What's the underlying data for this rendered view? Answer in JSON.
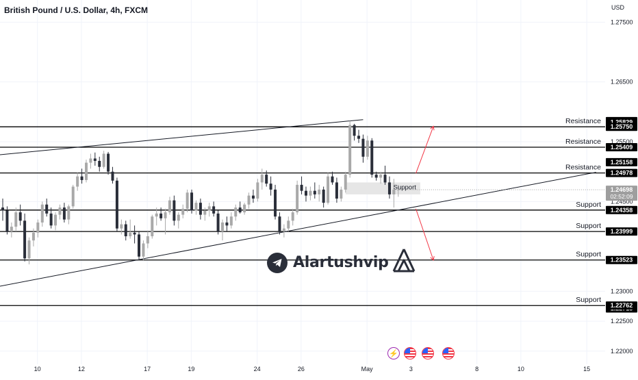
{
  "header": {
    "title": "British Pound / U.S. Dollar, 4h, FXCM",
    "currency": "USD"
  },
  "brand": {
    "name": "Alartushvip"
  },
  "colors": {
    "bull_candle": "#a9a9a9",
    "bear_candle": "#2a2e39",
    "level_line": "#000000",
    "projection_arrow": "#f23645",
    "support_box": "#e6e6e6",
    "price_label_bg": "#000000",
    "current_price_bg": "#9e9e9e"
  },
  "chart_data": {
    "type": "candlestick",
    "title": "British Pound / U.S. Dollar, 4h, FXCM",
    "y_axis": {
      "range": [
        1.2178,
        1.2787
      ],
      "ticks": [
        1.22,
        1.225,
        1.23,
        1.235,
        1.24,
        1.245,
        1.255,
        1.265,
        1.275
      ],
      "tick_labels": [
        "1.22000",
        "1.22500",
        "1.23000",
        "1.23500",
        "1.24000",
        "1.24500",
        "1.25500",
        "1.26500",
        "1.27500"
      ]
    },
    "x_axis": {
      "ticks": [
        {
          "bar": 4,
          "label": "10"
        },
        {
          "bar": 14,
          "label": "12"
        },
        {
          "bar": 29,
          "label": "17"
        },
        {
          "bar": 39,
          "label": "19"
        },
        {
          "bar": 54,
          "label": "24"
        },
        {
          "bar": 64,
          "label": "26"
        },
        {
          "bar": 79,
          "label": "May"
        },
        {
          "bar": 89,
          "label": "3"
        },
        {
          "bar": 104,
          "label": "8"
        },
        {
          "bar": 114,
          "label": "10"
        },
        {
          "bar": 129,
          "label": "15"
        }
      ]
    },
    "candles": [
      {
        "o": 1.244,
        "h": 1.2455,
        "l": 1.2418,
        "c": 1.2435
      },
      {
        "o": 1.2435,
        "h": 1.2442,
        "l": 1.2395,
        "c": 1.24
      },
      {
        "o": 1.24,
        "h": 1.2415,
        "l": 1.239,
        "c": 1.2408
      },
      {
        "o": 1.2408,
        "h": 1.244,
        "l": 1.24,
        "c": 1.2432
      },
      {
        "o": 1.2432,
        "h": 1.2445,
        "l": 1.241,
        "c": 1.2418
      },
      {
        "o": 1.2418,
        "h": 1.243,
        "l": 1.235,
        "c": 1.2355
      },
      {
        "o": 1.2355,
        "h": 1.239,
        "l": 1.2345,
        "c": 1.2385
      },
      {
        "o": 1.2385,
        "h": 1.2405,
        "l": 1.2375,
        "c": 1.2398
      },
      {
        "o": 1.2398,
        "h": 1.242,
        "l": 1.239,
        "c": 1.2415
      },
      {
        "o": 1.2415,
        "h": 1.245,
        "l": 1.2408,
        "c": 1.2445
      },
      {
        "o": 1.2445,
        "h": 1.2455,
        "l": 1.2425,
        "c": 1.243
      },
      {
        "o": 1.243,
        "h": 1.244,
        "l": 1.2405,
        "c": 1.241
      },
      {
        "o": 1.241,
        "h": 1.2432,
        "l": 1.2402,
        "c": 1.2428
      },
      {
        "o": 1.2428,
        "h": 1.2445,
        "l": 1.242,
        "c": 1.244
      },
      {
        "o": 1.244,
        "h": 1.2448,
        "l": 1.2415,
        "c": 1.242
      },
      {
        "o": 1.242,
        "h": 1.2445,
        "l": 1.2412,
        "c": 1.2442
      },
      {
        "o": 1.2442,
        "h": 1.2478,
        "l": 1.2438,
        "c": 1.2475
      },
      {
        "o": 1.2475,
        "h": 1.2498,
        "l": 1.2468,
        "c": 1.2492
      },
      {
        "o": 1.2492,
        "h": 1.2505,
        "l": 1.248,
        "c": 1.2486
      },
      {
        "o": 1.2486,
        "h": 1.252,
        "l": 1.2482,
        "c": 1.2515
      },
      {
        "o": 1.2515,
        "h": 1.253,
        "l": 1.2505,
        "c": 1.2522
      },
      {
        "o": 1.2522,
        "h": 1.2532,
        "l": 1.251,
        "c": 1.2518
      },
      {
        "o": 1.2518,
        "h": 1.2525,
        "l": 1.25,
        "c": 1.2508
      },
      {
        "o": 1.2508,
        "h": 1.2535,
        "l": 1.2505,
        "c": 1.253
      },
      {
        "o": 1.253,
        "h": 1.2533,
        "l": 1.2495,
        "c": 1.25
      },
      {
        "o": 1.25,
        "h": 1.2508,
        "l": 1.248,
        "c": 1.2485
      },
      {
        "o": 1.2485,
        "h": 1.249,
        "l": 1.24,
        "c": 1.2405
      },
      {
        "o": 1.2405,
        "h": 1.242,
        "l": 1.2395,
        "c": 1.2412
      },
      {
        "o": 1.2412,
        "h": 1.2418,
        "l": 1.2385,
        "c": 1.2392
      },
      {
        "o": 1.2392,
        "h": 1.242,
        "l": 1.2388,
        "c": 1.2398
      },
      {
        "o": 1.2398,
        "h": 1.241,
        "l": 1.238,
        "c": 1.2395
      },
      {
        "o": 1.2395,
        "h": 1.24,
        "l": 1.2352,
        "c": 1.2358
      },
      {
        "o": 1.2358,
        "h": 1.2385,
        "l": 1.2352,
        "c": 1.238
      },
      {
        "o": 1.238,
        "h": 1.24,
        "l": 1.2372,
        "c": 1.2392
      },
      {
        "o": 1.2392,
        "h": 1.2428,
        "l": 1.2388,
        "c": 1.2425
      },
      {
        "o": 1.2425,
        "h": 1.244,
        "l": 1.241,
        "c": 1.243
      },
      {
        "o": 1.243,
        "h": 1.244,
        "l": 1.2418,
        "c": 1.2422
      },
      {
        "o": 1.2422,
        "h": 1.2438,
        "l": 1.2395,
        "c": 1.2432
      },
      {
        "o": 1.2432,
        "h": 1.2458,
        "l": 1.2428,
        "c": 1.2452
      },
      {
        "o": 1.2452,
        "h": 1.246,
        "l": 1.241,
        "c": 1.2418
      },
      {
        "o": 1.2418,
        "h": 1.2432,
        "l": 1.2405,
        "c": 1.2428
      },
      {
        "o": 1.2428,
        "h": 1.2445,
        "l": 1.2422,
        "c": 1.2438
      },
      {
        "o": 1.2438,
        "h": 1.247,
        "l": 1.2432,
        "c": 1.2465
      },
      {
        "o": 1.2465,
        "h": 1.247,
        "l": 1.243,
        "c": 1.2435
      },
      {
        "o": 1.2435,
        "h": 1.2452,
        "l": 1.2428,
        "c": 1.2448
      },
      {
        "o": 1.2448,
        "h": 1.2455,
        "l": 1.242,
        "c": 1.2428
      },
      {
        "o": 1.2428,
        "h": 1.244,
        "l": 1.2418,
        "c": 1.2435
      },
      {
        "o": 1.2435,
        "h": 1.2448,
        "l": 1.2425,
        "c": 1.2442
      },
      {
        "o": 1.2442,
        "h": 1.245,
        "l": 1.2425,
        "c": 1.243
      },
      {
        "o": 1.243,
        "h": 1.2435,
        "l": 1.2395,
        "c": 1.24
      },
      {
        "o": 1.24,
        "h": 1.242,
        "l": 1.2385,
        "c": 1.2415
      },
      {
        "o": 1.2415,
        "h": 1.2425,
        "l": 1.24,
        "c": 1.241
      },
      {
        "o": 1.241,
        "h": 1.2432,
        "l": 1.2405,
        "c": 1.2425
      },
      {
        "o": 1.2425,
        "h": 1.2445,
        "l": 1.2418,
        "c": 1.244
      },
      {
        "o": 1.244,
        "h": 1.245,
        "l": 1.243,
        "c": 1.2432
      },
      {
        "o": 1.2432,
        "h": 1.2448,
        "l": 1.2428,
        "c": 1.2445
      },
      {
        "o": 1.2445,
        "h": 1.2465,
        "l": 1.2438,
        "c": 1.246
      },
      {
        "o": 1.246,
        "h": 1.247,
        "l": 1.2448,
        "c": 1.2455
      },
      {
        "o": 1.2455,
        "h": 1.2488,
        "l": 1.245,
        "c": 1.2482
      },
      {
        "o": 1.2482,
        "h": 1.2505,
        "l": 1.247,
        "c": 1.2495
      },
      {
        "o": 1.2495,
        "h": 1.2502,
        "l": 1.2475,
        "c": 1.248
      },
      {
        "o": 1.248,
        "h": 1.2492,
        "l": 1.246,
        "c": 1.247
      },
      {
        "o": 1.247,
        "h": 1.2478,
        "l": 1.242,
        "c": 1.2425
      },
      {
        "o": 1.2425,
        "h": 1.2432,
        "l": 1.2395,
        "c": 1.24
      },
      {
        "o": 1.24,
        "h": 1.2412,
        "l": 1.239,
        "c": 1.2405
      },
      {
        "o": 1.2405,
        "h": 1.2425,
        "l": 1.24,
        "c": 1.2418
      },
      {
        "o": 1.2418,
        "h": 1.2438,
        "l": 1.241,
        "c": 1.2432
      },
      {
        "o": 1.2432,
        "h": 1.2485,
        "l": 1.2428,
        "c": 1.2478
      },
      {
        "o": 1.2478,
        "h": 1.2492,
        "l": 1.2462,
        "c": 1.2468
      },
      {
        "o": 1.2468,
        "h": 1.2475,
        "l": 1.245,
        "c": 1.246
      },
      {
        "o": 1.246,
        "h": 1.2475,
        "l": 1.2452,
        "c": 1.2468
      },
      {
        "o": 1.2468,
        "h": 1.2482,
        "l": 1.2455,
        "c": 1.2462
      },
      {
        "o": 1.2462,
        "h": 1.2478,
        "l": 1.245,
        "c": 1.247
      },
      {
        "o": 1.247,
        "h": 1.2475,
        "l": 1.244,
        "c": 1.2448
      },
      {
        "o": 1.2448,
        "h": 1.2498,
        "l": 1.2445,
        "c": 1.2492
      },
      {
        "o": 1.2492,
        "h": 1.25,
        "l": 1.2478,
        "c": 1.2482
      },
      {
        "o": 1.2482,
        "h": 1.249,
        "l": 1.2448,
        "c": 1.2455
      },
      {
        "o": 1.2455,
        "h": 1.2475,
        "l": 1.245,
        "c": 1.247
      },
      {
        "o": 1.247,
        "h": 1.25,
        "l": 1.2465,
        "c": 1.2495
      },
      {
        "o": 1.2495,
        "h": 1.2585,
        "l": 1.249,
        "c": 1.2578
      },
      {
        "o": 1.2578,
        "h": 1.258,
        "l": 1.2552,
        "c": 1.256
      },
      {
        "o": 1.256,
        "h": 1.257,
        "l": 1.2548,
        "c": 1.2555
      },
      {
        "o": 1.2555,
        "h": 1.2562,
        "l": 1.2515,
        "c": 1.2525
      },
      {
        "o": 1.2525,
        "h": 1.256,
        "l": 1.252,
        "c": 1.2552
      },
      {
        "o": 1.2552,
        "h": 1.2556,
        "l": 1.249,
        "c": 1.2495
      },
      {
        "o": 1.2495,
        "h": 1.25,
        "l": 1.2485,
        "c": 1.249
      },
      {
        "o": 1.249,
        "h": 1.25,
        "l": 1.248,
        "c": 1.2495
      },
      {
        "o": 1.2495,
        "h": 1.251,
        "l": 1.2478,
        "c": 1.2482
      },
      {
        "o": 1.2482,
        "h": 1.2492,
        "l": 1.2455,
        "c": 1.2462
      },
      {
        "o": 1.2462,
        "h": 1.2488,
        "l": 1.244,
        "c": 1.247
      },
      {
        "o": 1.247,
        "h": 1.2478,
        "l": 1.2458,
        "c": 1.247
      }
    ],
    "levels": [
      {
        "price": 1.2575,
        "label": "1.25750",
        "annotation": "Resistance"
      },
      {
        "price": 1.25409,
        "label": "1.25409",
        "annotation": "Resistance"
      },
      {
        "price": 1.24978,
        "label": "1.24978",
        "annotation": "Resistance"
      },
      {
        "price": 1.24358,
        "label": "1.24358",
        "annotation": "Support"
      },
      {
        "price": 1.23999,
        "label": "1.23999",
        "annotation": "Support"
      },
      {
        "price": 1.23523,
        "label": "1.23523",
        "annotation": "Support"
      },
      {
        "price": 1.22762,
        "label": "1.22762",
        "annotation": "Support"
      }
    ],
    "extra_price_labels": [
      {
        "price": 1.25845,
        "label": "1.25845"
      },
      {
        "price": 1.25829,
        "label": "1.25829"
      },
      {
        "price": 1.25158,
        "label": "1.25158"
      },
      {
        "price": 1.22713,
        "label": "1.22713"
      }
    ],
    "current_price": {
      "price": 1.24698,
      "label": "1.24698",
      "countdown": "02:52:09"
    },
    "support_zone": {
      "price_top": 1.2482,
      "price_bottom": 1.2462,
      "bar_start": 78,
      "bar_end": 95,
      "label": "Support"
    },
    "trendlines": [
      {
        "from": {
          "bar": -1,
          "price": 1.2528
        },
        "to": {
          "bar": 82,
          "price": 1.2587
        }
      },
      {
        "from": {
          "bar": -1,
          "price": 1.2308
        },
        "to": {
          "bar": 135,
          "price": 1.2499
        }
      }
    ],
    "projection_arrows": [
      {
        "from": {
          "bar": 94,
          "price": 1.2497
        },
        "to": {
          "bar": 98,
          "price": 1.2576
        }
      },
      {
        "from": {
          "bar": 94,
          "price": 1.2438
        },
        "to": {
          "bar": 98,
          "price": 1.2352
        }
      }
    ]
  }
}
